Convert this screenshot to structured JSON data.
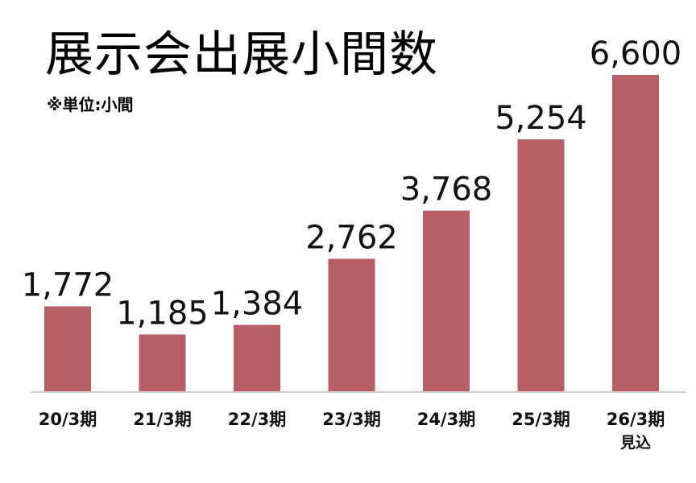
{
  "chart_data": {
    "type": "bar",
    "title": "展示会出展小間数",
    "subtitle": "※単位:小間",
    "categories": [
      "20/3期",
      "21/3期",
      "22/3期",
      "23/3期",
      "24/3期",
      "25/3期",
      "26/3期"
    ],
    "category_notes": [
      "",
      "",
      "",
      "",
      "",
      "",
      "見込"
    ],
    "values": [
      1772,
      1185,
      1384,
      2762,
      3768,
      5254,
      6600
    ],
    "value_labels": [
      "1,772",
      "1,185",
      "1,384",
      "2,762",
      "3,768",
      "5,254",
      "6,600"
    ],
    "ylim": [
      0,
      6600
    ],
    "grid": false,
    "bar_color": "#b85f65",
    "axis_color": "#cccccc"
  }
}
